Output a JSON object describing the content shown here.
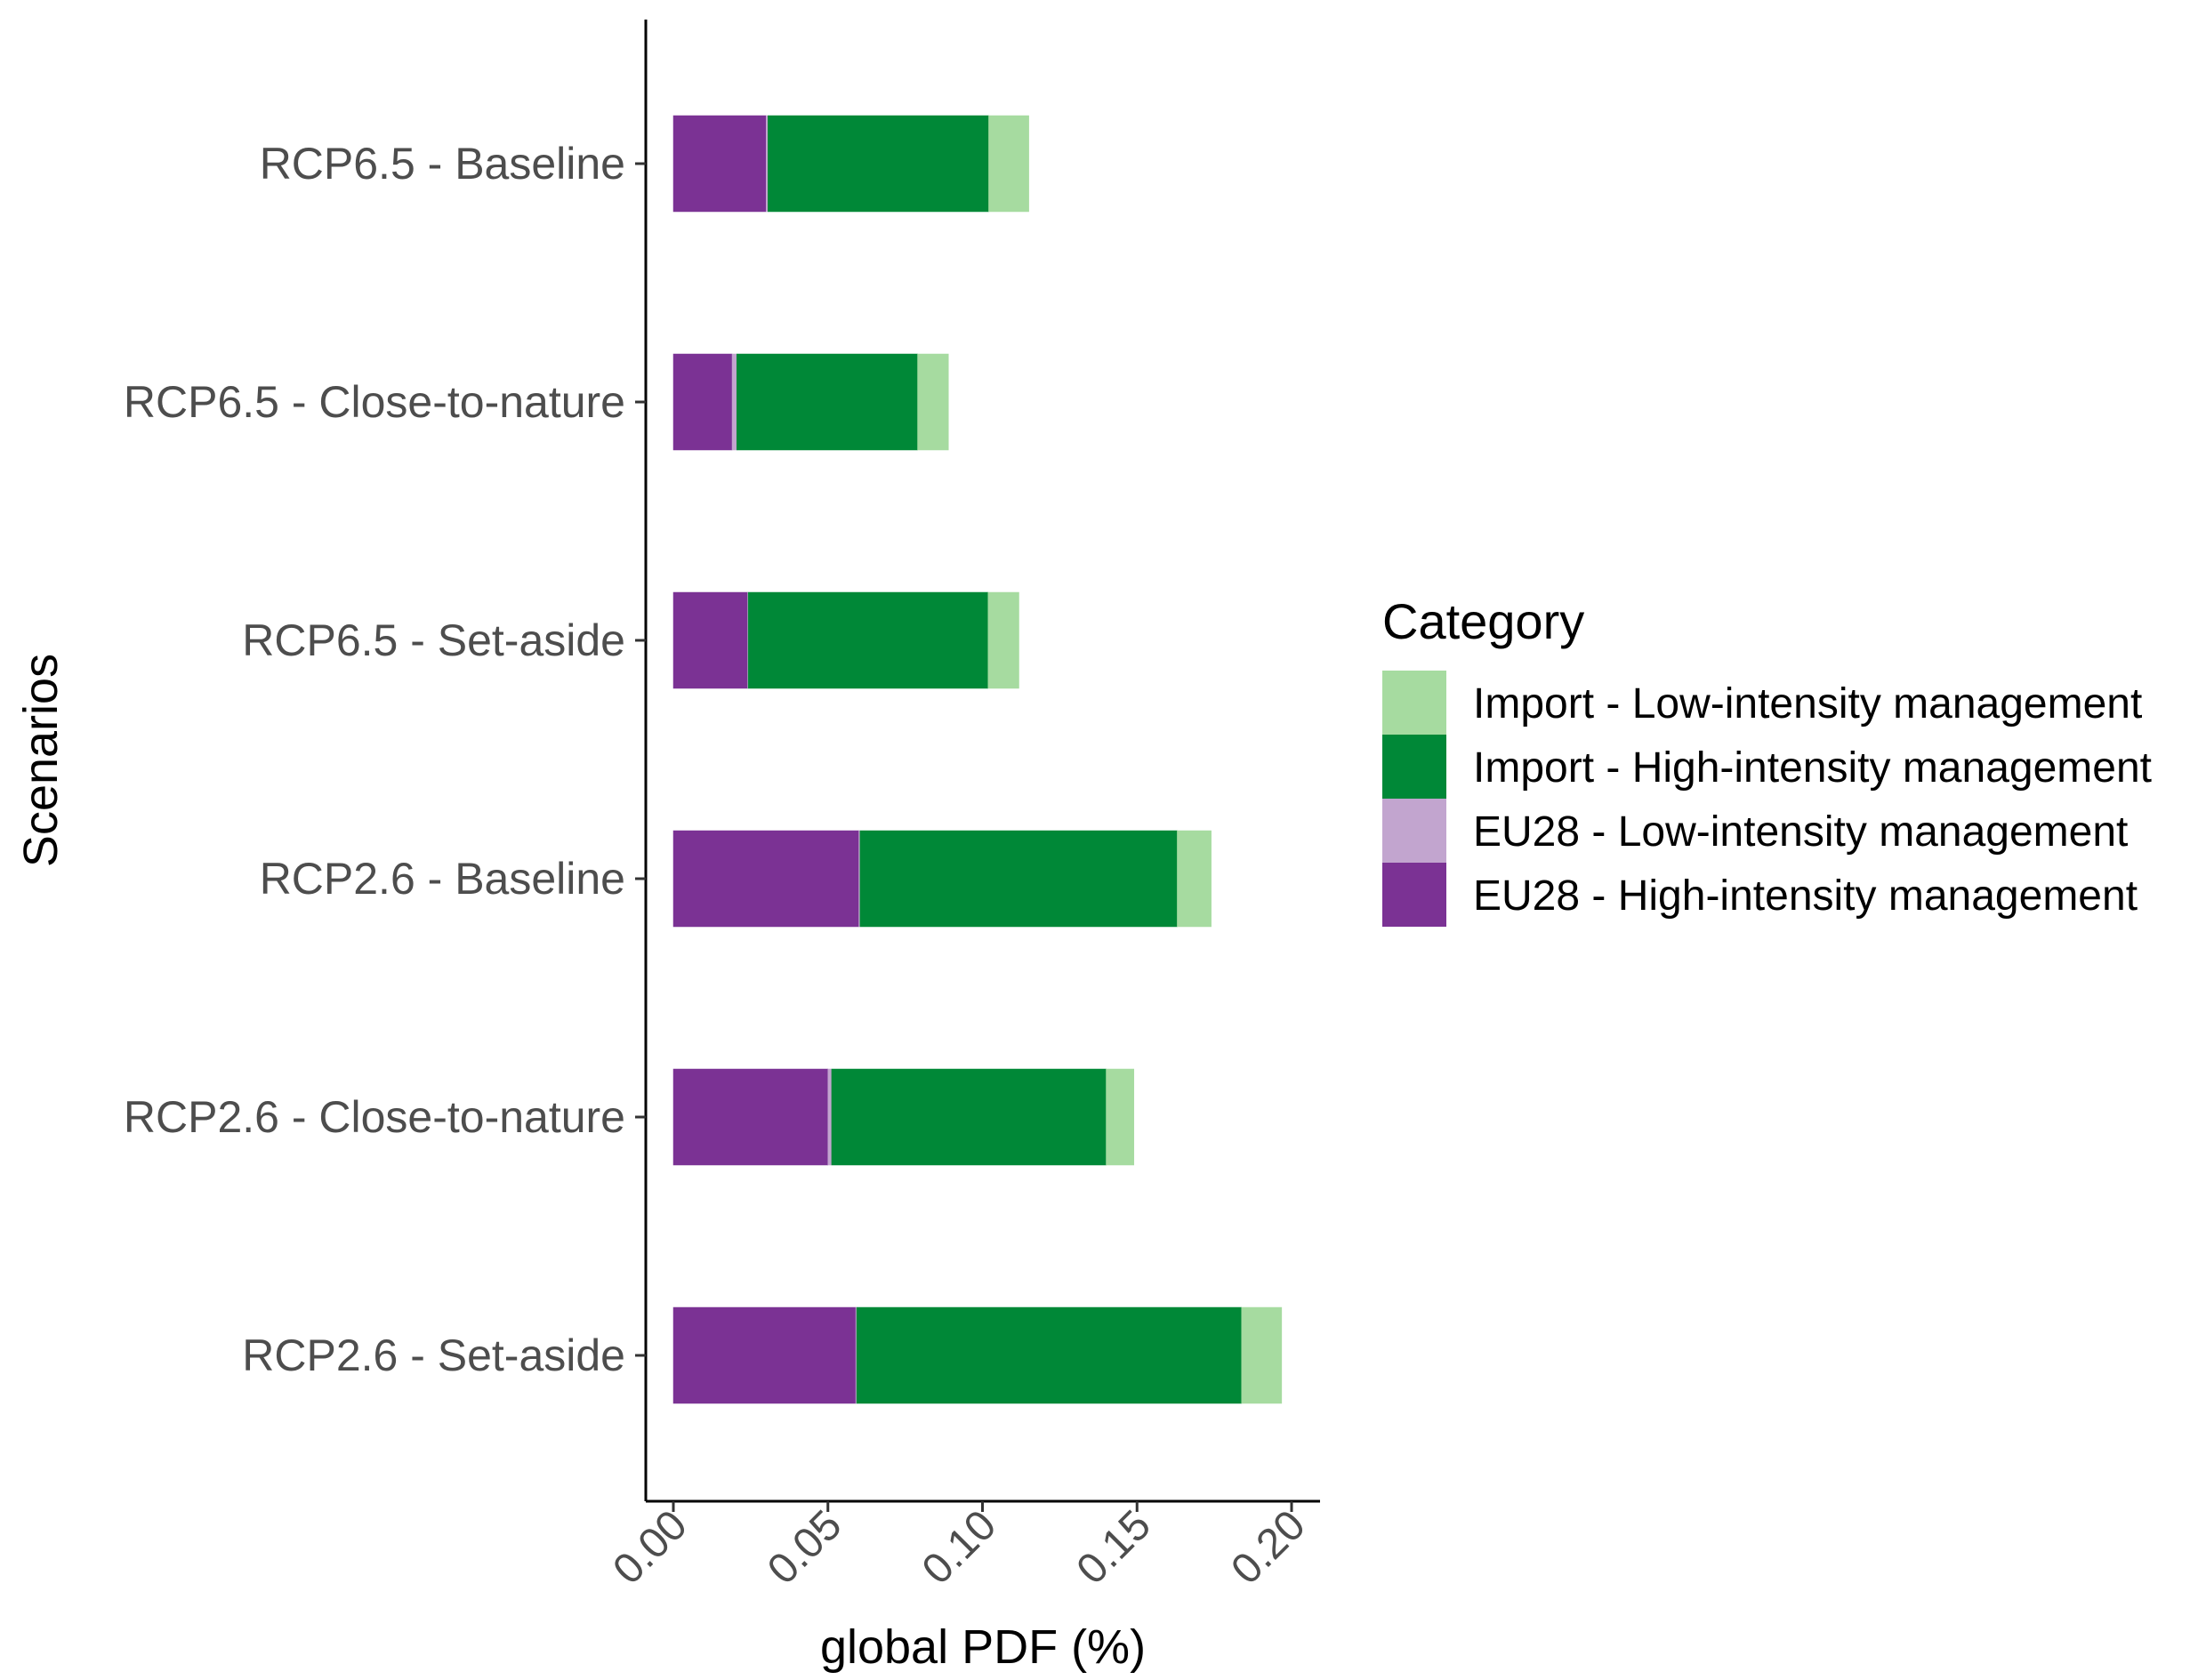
{
  "chart_data": {
    "type": "bar",
    "orientation": "horizontal",
    "stacked": true,
    "title": "",
    "xlabel": "global PDF (%)",
    "ylabel": "Scenarios",
    "xlim": [
      0,
      0.2
    ],
    "xticks": [
      0,
      0.05,
      0.1,
      0.15,
      0.2
    ],
    "xtick_labels": [
      "0.00",
      "0.05",
      "0.10",
      "0.15",
      "0.20"
    ],
    "grid": false,
    "categories": [
      "RCP6.5 - Baseline",
      "RCP6.5 - Close-to-nature",
      "RCP6.5 - Set-aside",
      "RCP2.6 - Baseline",
      "RCP2.6 - Close-to-nature",
      "RCP2.6 - Set-aside"
    ],
    "series": [
      {
        "name": "EU28 - High-intensity management",
        "color": "#7B3294",
        "values": [
          0.03,
          0.019,
          0.024,
          0.06,
          0.05,
          0.059
        ]
      },
      {
        "name": "EU28 - Low-intensity management",
        "color": "#C2A5CF",
        "values": [
          0.0006,
          0.0015,
          0.0002,
          0.0004,
          0.0012,
          0.0003
        ]
      },
      {
        "name": "Import - High-intensity management",
        "color": "#008837",
        "values": [
          0.0714,
          0.0585,
          0.0776,
          0.1026,
          0.0888,
          0.1245
        ]
      },
      {
        "name": "Import - Low-intensity management",
        "color": "#A6DBA0",
        "values": [
          0.013,
          0.01,
          0.01,
          0.011,
          0.009,
          0.013
        ]
      }
    ],
    "legend": {
      "title": "Category",
      "position": "right",
      "order": [
        "Import - Low-intensity management",
        "Import - High-intensity management",
        "EU28 - Low-intensity management",
        "EU28 - High-intensity management"
      ]
    }
  }
}
